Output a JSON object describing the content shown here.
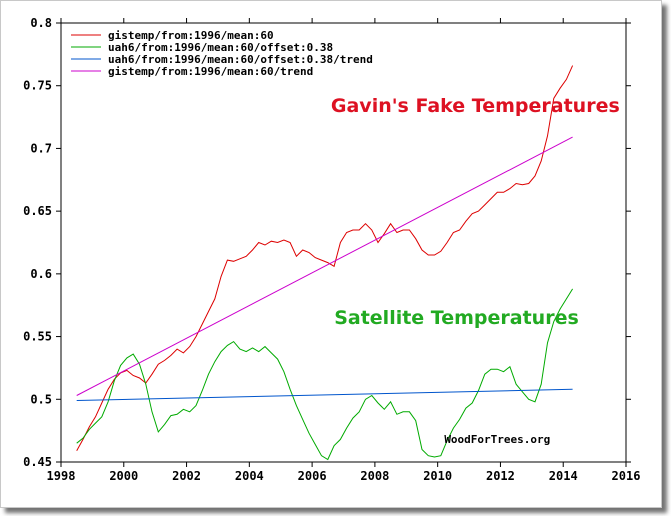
{
  "chart_data": {
    "type": "line",
    "xlim": [
      1998,
      2016
    ],
    "ylim": [
      0.45,
      0.8
    ],
    "x_ticks": [
      1998,
      2000,
      2002,
      2004,
      2006,
      2008,
      2010,
      2012,
      2014,
      2016
    ],
    "y_ticks": [
      0.45,
      0.5,
      0.55,
      0.6,
      0.65,
      0.7,
      0.75,
      0.8
    ],
    "x_tick_labels": [
      "1998",
      "2000",
      "2002",
      "2004",
      "2006",
      "2008",
      "2010",
      "2012",
      "2014",
      "2016"
    ],
    "y_tick_labels": [
      "0.45",
      "0.5",
      "0.55",
      "0.6",
      "0.65",
      "0.7",
      "0.75",
      "0.8"
    ],
    "legend_position": "top-left",
    "grid": false,
    "series": [
      {
        "name": "gistemp/from:1996/mean:60",
        "color": "#dd0000",
        "x": [
          1998.5,
          1998.7,
          1998.9,
          1999.1,
          1999.3,
          1999.5,
          1999.7,
          1999.9,
          2000.1,
          2000.3,
          2000.5,
          2000.7,
          2000.9,
          2001.1,
          2001.3,
          2001.5,
          2001.7,
          2001.9,
          2002.1,
          2002.3,
          2002.5,
          2002.7,
          2002.9,
          2003.1,
          2003.3,
          2003.5,
          2003.7,
          2003.9,
          2004.1,
          2004.3,
          2004.5,
          2004.7,
          2004.9,
          2005.1,
          2005.3,
          2005.5,
          2005.7,
          2005.9,
          2006.1,
          2006.3,
          2006.5,
          2006.7,
          2006.9,
          2007.1,
          2007.3,
          2007.5,
          2007.7,
          2007.9,
          2008.1,
          2008.3,
          2008.5,
          2008.7,
          2008.9,
          2009.1,
          2009.3,
          2009.5,
          2009.7,
          2009.9,
          2010.1,
          2010.3,
          2010.5,
          2010.7,
          2010.9,
          2011.1,
          2011.3,
          2011.5,
          2011.7,
          2011.9,
          2012.1,
          2012.3,
          2012.5,
          2012.7,
          2012.9,
          2013.1,
          2013.3,
          2013.5,
          2013.7,
          2013.9,
          2014.1,
          2014.3
        ],
        "values": [
          0.459,
          0.468,
          0.478,
          0.486,
          0.497,
          0.508,
          0.516,
          0.521,
          0.523,
          0.519,
          0.517,
          0.513,
          0.52,
          0.528,
          0.531,
          0.535,
          0.54,
          0.537,
          0.542,
          0.55,
          0.56,
          0.57,
          0.58,
          0.598,
          0.611,
          0.61,
          0.612,
          0.614,
          0.619,
          0.625,
          0.623,
          0.626,
          0.625,
          0.627,
          0.625,
          0.614,
          0.619,
          0.617,
          0.613,
          0.611,
          0.609,
          0.606,
          0.625,
          0.633,
          0.635,
          0.635,
          0.64,
          0.635,
          0.625,
          0.632,
          0.64,
          0.633,
          0.635,
          0.635,
          0.628,
          0.619,
          0.615,
          0.615,
          0.618,
          0.625,
          0.633,
          0.635,
          0.642,
          0.648,
          0.65,
          0.655,
          0.66,
          0.665,
          0.665,
          0.668,
          0.672,
          0.671,
          0.672,
          0.678,
          0.69,
          0.71,
          0.74,
          0.748,
          0.755,
          0.766
        ]
      },
      {
        "name": "uah6/from:1996/mean:60/offset:0.38",
        "color": "#00aa00",
        "x": [
          1998.5,
          1998.7,
          1998.9,
          1999.1,
          1999.3,
          1999.5,
          1999.7,
          1999.9,
          2000.1,
          2000.3,
          2000.5,
          2000.7,
          2000.9,
          2001.1,
          2001.3,
          2001.5,
          2001.7,
          2001.9,
          2002.1,
          2002.3,
          2002.5,
          2002.7,
          2002.9,
          2003.1,
          2003.3,
          2003.5,
          2003.7,
          2003.9,
          2004.1,
          2004.3,
          2004.5,
          2004.7,
          2004.9,
          2005.1,
          2005.3,
          2005.5,
          2005.7,
          2005.9,
          2006.1,
          2006.3,
          2006.5,
          2006.7,
          2006.9,
          2007.1,
          2007.3,
          2007.5,
          2007.7,
          2007.9,
          2008.1,
          2008.3,
          2008.5,
          2008.7,
          2008.9,
          2009.1,
          2009.3,
          2009.5,
          2009.7,
          2009.9,
          2010.1,
          2010.3,
          2010.5,
          2010.7,
          2010.9,
          2011.1,
          2011.3,
          2011.5,
          2011.7,
          2011.9,
          2012.1,
          2012.3,
          2012.5,
          2012.7,
          2012.9,
          2013.1,
          2013.3,
          2013.5,
          2013.7,
          2013.9,
          2014.1,
          2014.3
        ],
        "values": [
          0.465,
          0.469,
          0.476,
          0.481,
          0.486,
          0.498,
          0.515,
          0.527,
          0.533,
          0.536,
          0.528,
          0.512,
          0.49,
          0.474,
          0.48,
          0.487,
          0.488,
          0.492,
          0.49,
          0.495,
          0.507,
          0.52,
          0.53,
          0.538,
          0.543,
          0.546,
          0.54,
          0.538,
          0.541,
          0.538,
          0.542,
          0.537,
          0.532,
          0.522,
          0.508,
          0.495,
          0.484,
          0.473,
          0.464,
          0.455,
          0.452,
          0.463,
          0.468,
          0.477,
          0.485,
          0.49,
          0.5,
          0.503,
          0.497,
          0.492,
          0.498,
          0.488,
          0.49,
          0.49,
          0.483,
          0.46,
          0.455,
          0.454,
          0.455,
          0.467,
          0.477,
          0.484,
          0.493,
          0.497,
          0.507,
          0.52,
          0.524,
          0.524,
          0.522,
          0.526,
          0.512,
          0.506,
          0.5,
          0.498,
          0.512,
          0.545,
          0.562,
          0.572,
          0.58,
          0.588
        ]
      },
      {
        "name": "uah6/from:1996/mean:60/offset:0.38/trend",
        "color": "#0055cc",
        "x": [
          1998.5,
          2014.3
        ],
        "values": [
          0.499,
          0.508
        ]
      },
      {
        "name": "gistemp/from:1996/mean:60/trend",
        "color": "#cc00cc",
        "x": [
          1998.5,
          2014.3
        ],
        "values": [
          0.503,
          0.709
        ]
      }
    ],
    "annotations": [
      {
        "text": "Gavin's Fake Temperatures",
        "color": "#dd1122",
        "x": 2011.2,
        "y": 0.729
      },
      {
        "text": "Satellite Temperatures",
        "color": "#22aa22",
        "x": 2010.6,
        "y": 0.56
      },
      {
        "text": "WoodForTrees.org",
        "color": "#000000",
        "x": 2011.9,
        "y": 0.465
      }
    ]
  }
}
